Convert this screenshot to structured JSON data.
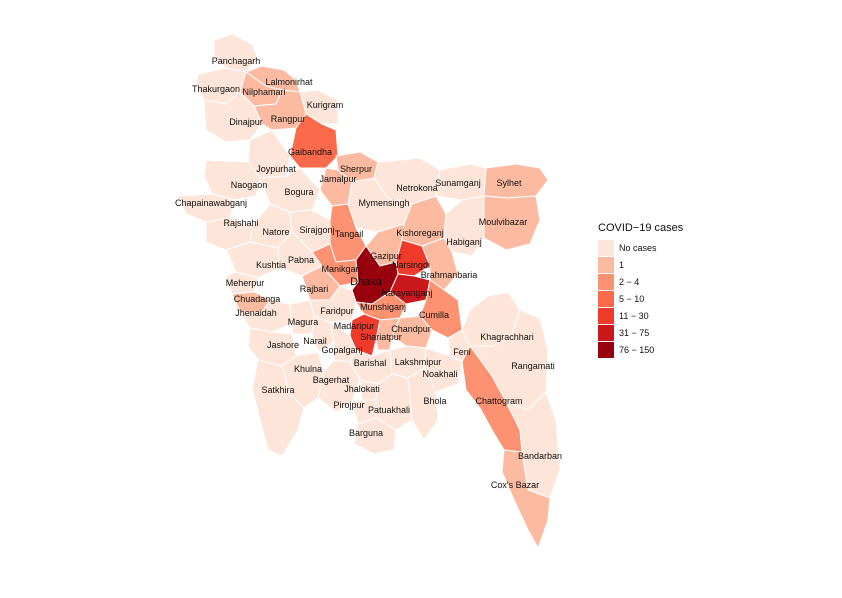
{
  "legend": {
    "title": "COVID−19 cases",
    "items": [
      {
        "label": "No cases",
        "color": "#fee5d9"
      },
      {
        "label": "1",
        "color": "#fcbba1"
      },
      {
        "label": "2 − 4",
        "color": "#fc9272"
      },
      {
        "label": "5 − 10",
        "color": "#fb6a4a"
      },
      {
        "label": "11 − 30",
        "color": "#ef3b2c"
      },
      {
        "label": "31 − 75",
        "color": "#cb181d"
      },
      {
        "label": "76 − 150",
        "color": "#99000d"
      }
    ]
  },
  "districts": [
    {
      "name": "Panchagarh",
      "cls": 0
    },
    {
      "name": "Thakurgaon",
      "cls": 0
    },
    {
      "name": "Lalmonirhat",
      "cls": 1
    },
    {
      "name": "Nilphamari",
      "cls": 1
    },
    {
      "name": "Kurigram",
      "cls": 0
    },
    {
      "name": "Dinajpur",
      "cls": 0
    },
    {
      "name": "Rangpur",
      "cls": 1
    },
    {
      "name": "Gaibandha",
      "cls": 3
    },
    {
      "name": "Joypurhat",
      "cls": 0
    },
    {
      "name": "Sherpur",
      "cls": 1
    },
    {
      "name": "Naogaon",
      "cls": 0
    },
    {
      "name": "Jamalpur",
      "cls": 1
    },
    {
      "name": "Bogura",
      "cls": 0
    },
    {
      "name": "Netrokona",
      "cls": 0
    },
    {
      "name": "Sunamganj",
      "cls": 0
    },
    {
      "name": "Sylhet",
      "cls": 1
    },
    {
      "name": "Chapainawabganj",
      "cls": 0
    },
    {
      "name": "Mymensingh",
      "cls": 0
    },
    {
      "name": "Moulvibazar",
      "cls": 1
    },
    {
      "name": "Rajshahi",
      "cls": 0
    },
    {
      "name": "Natore",
      "cls": 0
    },
    {
      "name": "Sirajgonj",
      "cls": 0
    },
    {
      "name": "Tangail",
      "cls": 2
    },
    {
      "name": "Kishoreganj",
      "cls": 1
    },
    {
      "name": "Habiganj",
      "cls": 0
    },
    {
      "name": "Gazipur",
      "cls": 1
    },
    {
      "name": "Kushtia",
      "cls": 0
    },
    {
      "name": "Pabna",
      "cls": 0
    },
    {
      "name": "Manikganj",
      "cls": 2
    },
    {
      "name": "Narsingdi",
      "cls": 4
    },
    {
      "name": "Brahmanbaria",
      "cls": 1
    },
    {
      "name": "Meherpur",
      "cls": 0
    },
    {
      "name": "Dhaka",
      "cls": 6
    },
    {
      "name": "Rajbari",
      "cls": 1
    },
    {
      "name": "Narayanganj",
      "cls": 5
    },
    {
      "name": "Chuadanga",
      "cls": 1
    },
    {
      "name": "Jhenaidah",
      "cls": 0
    },
    {
      "name": "Faridpur",
      "cls": 0
    },
    {
      "name": "Munshiganj",
      "cls": 2
    },
    {
      "name": "Cumilla",
      "cls": 2
    },
    {
      "name": "Magura",
      "cls": 0
    },
    {
      "name": "Madaripur",
      "cls": 4
    },
    {
      "name": "Chandpur",
      "cls": 1
    },
    {
      "name": "Narail",
      "cls": 0
    },
    {
      "name": "Shariatpur",
      "cls": 1
    },
    {
      "name": "Jashore",
      "cls": 0
    },
    {
      "name": "Gopalganj",
      "cls": 0
    },
    {
      "name": "Feni",
      "cls": 0
    },
    {
      "name": "Khagrachhari",
      "cls": 0
    },
    {
      "name": "Barishal",
      "cls": 0
    },
    {
      "name": "Lakshmipur",
      "cls": 0
    },
    {
      "name": "Khulna",
      "cls": 0
    },
    {
      "name": "Noakhali",
      "cls": 0
    },
    {
      "name": "Rangamati",
      "cls": 0
    },
    {
      "name": "Bagerhat",
      "cls": 0
    },
    {
      "name": "Jhalokati",
      "cls": 0
    },
    {
      "name": "Satkhira",
      "cls": 0
    },
    {
      "name": "Bhola",
      "cls": 0
    },
    {
      "name": "Chattogram",
      "cls": 2
    },
    {
      "name": "Pirojpur",
      "cls": 0
    },
    {
      "name": "Patuakhali",
      "cls": 0
    },
    {
      "name": "Barguna",
      "cls": 0
    },
    {
      "name": "Bandarban",
      "cls": 0
    },
    {
      "name": "Cox's Bazar",
      "cls": 1
    }
  ]
}
